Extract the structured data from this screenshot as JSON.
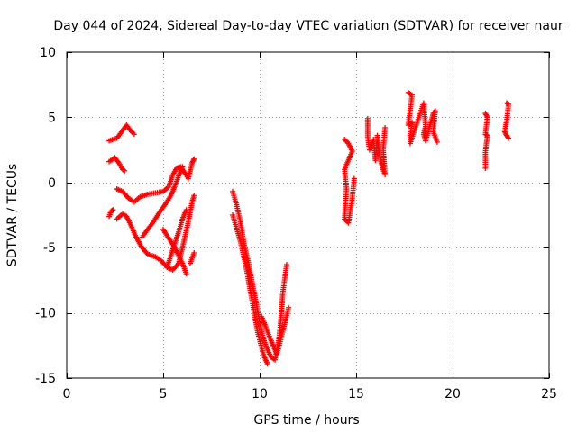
{
  "chart_data": {
    "type": "scatter",
    "title": "Day 044 of 2024, Sidereal Day-to-day VTEC variation (SDTVAR) for receiver naur",
    "xlabel": "GPS time / hours",
    "ylabel": "SDTVAR / TECUs",
    "xlim": [
      0,
      25
    ],
    "ylim": [
      -15,
      10
    ],
    "xticks": [
      0,
      5,
      10,
      15,
      20,
      25
    ],
    "yticks": [
      -15,
      -10,
      -5,
      0,
      5,
      10
    ],
    "grid": true,
    "marker": "+",
    "color": "#ff0000",
    "segments": [
      {
        "name": "arc-high-early",
        "points": [
          [
            2.2,
            3.2
          ],
          [
            2.6,
            3.4
          ],
          [
            2.9,
            4.0
          ],
          [
            3.1,
            4.4
          ],
          [
            3.3,
            4.0
          ],
          [
            3.5,
            3.7
          ]
        ]
      },
      {
        "name": "arc-low-early",
        "points": [
          [
            2.2,
            1.6
          ],
          [
            2.5,
            1.9
          ],
          [
            2.7,
            1.5
          ],
          [
            2.9,
            1.0
          ],
          [
            3.0,
            0.9
          ]
        ]
      },
      {
        "name": "arc-descend-1",
        "points": [
          [
            2.2,
            -2.6
          ],
          [
            2.3,
            -2.2
          ],
          [
            2.4,
            -2.1
          ]
        ]
      },
      {
        "name": "arc-rise-from-right",
        "points": [
          [
            2.6,
            -2.8
          ],
          [
            2.9,
            -2.4
          ],
          [
            3.1,
            -2.6
          ],
          [
            3.3,
            -3.2
          ],
          [
            3.6,
            -4.2
          ],
          [
            3.9,
            -5.0
          ],
          [
            4.2,
            -5.5
          ],
          [
            4.6,
            -5.7
          ],
          [
            4.9,
            -6.0
          ],
          [
            5.2,
            -6.5
          ],
          [
            5.5,
            -6.7
          ],
          [
            5.8,
            -6.2
          ],
          [
            6.0,
            -5.0
          ],
          [
            6.3,
            -3.0
          ],
          [
            6.5,
            -1.5
          ],
          [
            6.6,
            -1.0
          ]
        ]
      },
      {
        "name": "arc-mid-loop",
        "points": [
          [
            2.6,
            -0.5
          ],
          [
            2.9,
            -0.7
          ],
          [
            3.2,
            -1.2
          ],
          [
            3.5,
            -1.5
          ],
          [
            3.8,
            -1.1
          ],
          [
            4.2,
            -0.9
          ],
          [
            4.6,
            -0.8
          ],
          [
            5.0,
            -0.7
          ],
          [
            5.3,
            -0.3
          ],
          [
            5.5,
            0.6
          ],
          [
            5.7,
            1.1
          ],
          [
            5.9,
            1.2
          ],
          [
            6.1,
            0.8
          ],
          [
            6.3,
            0.3
          ],
          [
            6.5,
            1.5
          ],
          [
            6.6,
            1.8
          ]
        ]
      },
      {
        "name": "arc-steep-rise",
        "points": [
          [
            3.9,
            -4.2
          ],
          [
            4.2,
            -3.6
          ],
          [
            4.5,
            -3.0
          ],
          [
            4.8,
            -2.3
          ],
          [
            5.1,
            -1.7
          ],
          [
            5.4,
            -1.0
          ],
          [
            5.6,
            -0.3
          ],
          [
            5.8,
            0.5
          ],
          [
            6.0,
            1.2
          ]
        ]
      },
      {
        "name": "arc-diagonal-down",
        "points": [
          [
            5.0,
            -3.6
          ],
          [
            5.3,
            -4.3
          ],
          [
            5.6,
            -5.0
          ],
          [
            5.8,
            -5.6
          ],
          [
            6.0,
            -6.2
          ],
          [
            6.2,
            -7.0
          ]
        ]
      },
      {
        "name": "arc-steep-cross",
        "points": [
          [
            5.2,
            -6.5
          ],
          [
            5.4,
            -5.6
          ],
          [
            5.6,
            -4.7
          ],
          [
            5.8,
            -3.8
          ],
          [
            6.0,
            -2.8
          ],
          [
            6.2,
            -2.1
          ]
        ]
      },
      {
        "name": "arc-end-early",
        "points": [
          [
            6.4,
            -6.2
          ],
          [
            6.5,
            -5.8
          ],
          [
            6.6,
            -5.4
          ]
        ]
      },
      {
        "name": "arc-v-shape",
        "points": [
          [
            8.6,
            -0.7
          ],
          [
            8.8,
            -1.7
          ],
          [
            9.0,
            -3.0
          ],
          [
            9.2,
            -4.8
          ],
          [
            9.4,
            -6.0
          ],
          [
            9.6,
            -7.6
          ],
          [
            9.8,
            -9.1
          ],
          [
            10.0,
            -10.7
          ],
          [
            10.2,
            -12.0
          ],
          [
            10.4,
            -12.8
          ],
          [
            10.6,
            -13.4
          ],
          [
            10.8,
            -13.6
          ],
          [
            11.0,
            -12.0
          ],
          [
            11.1,
            -10.5
          ],
          [
            11.2,
            -8.5
          ],
          [
            11.4,
            -6.3
          ]
        ]
      },
      {
        "name": "arc-v-branch",
        "points": [
          [
            8.6,
            -2.5
          ],
          [
            8.8,
            -3.5
          ],
          [
            9.0,
            -4.5
          ],
          [
            9.3,
            -6.5
          ],
          [
            9.6,
            -9.0
          ],
          [
            9.9,
            -11.5
          ],
          [
            10.2,
            -13.2
          ],
          [
            10.4,
            -13.9
          ]
        ]
      },
      {
        "name": "arc-v-mid",
        "points": [
          [
            10.1,
            -10.3
          ],
          [
            10.3,
            -11.0
          ],
          [
            10.5,
            -11.8
          ],
          [
            10.7,
            -12.5
          ],
          [
            10.9,
            -13.2
          ],
          [
            11.5,
            -9.6
          ]
        ]
      },
      {
        "name": "arc-late-1",
        "points": [
          [
            14.4,
            3.3
          ],
          [
            14.6,
            3.0
          ],
          [
            14.8,
            2.4
          ],
          [
            14.4,
            1.0
          ],
          [
            14.5,
            -0.5
          ],
          [
            14.4,
            -2.8
          ],
          [
            14.6,
            -3.1
          ],
          [
            14.8,
            -1.2
          ],
          [
            14.9,
            0.3
          ]
        ]
      },
      {
        "name": "arc-late-2",
        "points": [
          [
            15.6,
            4.9
          ],
          [
            15.6,
            3.5
          ],
          [
            15.7,
            2.5
          ],
          [
            15.9,
            3.3
          ],
          [
            16.0,
            1.7
          ],
          [
            16.1,
            3.6
          ],
          [
            16.2,
            2.2
          ],
          [
            16.3,
            1.5
          ],
          [
            16.4,
            1.0
          ],
          [
            16.5,
            0.6
          ],
          [
            16.4,
            2.6
          ],
          [
            16.5,
            4.2
          ]
        ]
      },
      {
        "name": "arc-late-3",
        "points": [
          [
            17.7,
            6.9
          ],
          [
            17.9,
            6.7
          ],
          [
            17.7,
            4.4
          ],
          [
            17.9,
            4.6
          ],
          [
            17.8,
            3.6
          ],
          [
            17.8,
            3.0
          ],
          [
            18.5,
            6.1
          ],
          [
            18.6,
            4.3
          ],
          [
            18.5,
            3.7
          ],
          [
            18.6,
            3.2
          ],
          [
            19.0,
            5.3
          ],
          [
            19.1,
            5.5
          ],
          [
            19.0,
            3.9
          ],
          [
            19.1,
            3.5
          ],
          [
            19.2,
            3.1
          ]
        ]
      },
      {
        "name": "arc-late-4",
        "points": [
          [
            21.7,
            5.3
          ],
          [
            21.8,
            5.0
          ],
          [
            21.7,
            3.7
          ],
          [
            21.8,
            3.6
          ],
          [
            21.7,
            2.3
          ],
          [
            21.7,
            1.1
          ]
        ]
      },
      {
        "name": "arc-late-5",
        "points": [
          [
            22.8,
            6.1
          ],
          [
            22.9,
            6.0
          ],
          [
            22.8,
            4.7
          ],
          [
            22.7,
            3.9
          ],
          [
            22.8,
            3.6
          ],
          [
            22.9,
            3.4
          ]
        ]
      }
    ]
  }
}
